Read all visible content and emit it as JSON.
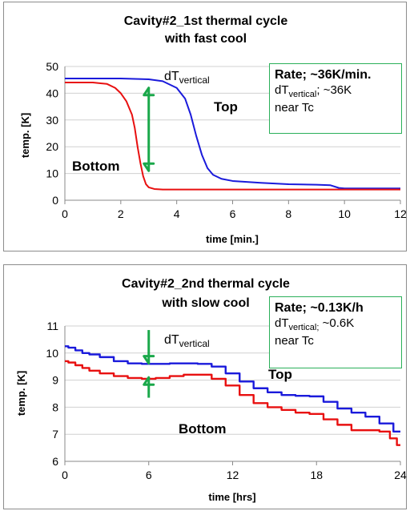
{
  "chart_data": [
    {
      "type": "line",
      "title": "Cavity#2_1st thermal cycle",
      "subtitle": "with fast cool",
      "xlabel": "time [min.]",
      "ylabel": "temp. [K]",
      "xlim": [
        0,
        12
      ],
      "ylim": [
        0,
        50
      ],
      "xticks": [
        0,
        2,
        4,
        6,
        8,
        10,
        12
      ],
      "yticks": [
        0,
        10,
        20,
        30,
        40,
        50
      ],
      "grid": "horizontal",
      "series": [
        {
          "name": "Top",
          "color": "#1a1adb",
          "x": [
            0,
            1,
            2,
            3,
            3.5,
            4,
            4.3,
            4.5,
            4.7,
            4.9,
            5.1,
            5.3,
            5.6,
            6,
            7,
            8,
            9,
            9.5,
            9.8,
            10,
            11,
            12
          ],
          "y": [
            45.5,
            45.5,
            45.5,
            45.2,
            44.5,
            42,
            38,
            32,
            24,
            17,
            12,
            9.5,
            8,
            7.2,
            6.5,
            6,
            5.8,
            5.6,
            4.6,
            4.4,
            4.4,
            4.4
          ]
        },
        {
          "name": "Bottom",
          "color": "#e81010",
          "x": [
            0,
            1,
            1.5,
            1.8,
            2,
            2.2,
            2.4,
            2.5,
            2.6,
            2.7,
            2.8,
            2.9,
            3.0,
            3.2,
            3.5,
            4,
            6,
            8,
            10,
            12
          ],
          "y": [
            44,
            44,
            43.5,
            42,
            40,
            37,
            32,
            27,
            20,
            14,
            9,
            6,
            4.8,
            4.2,
            4,
            4,
            4,
            4,
            4,
            4
          ]
        }
      ],
      "annotations": {
        "top_label": "Top",
        "bottom_label": "Bottom",
        "dt_main": "dT",
        "dt_sub": "vertical",
        "arrow": {
          "x": 3,
          "y_from": 11,
          "y_to": 42,
          "color": "#1aa84a"
        }
      },
      "info_box": {
        "rate": "Rate; ~36K/min.",
        "dt_main": "dT",
        "dt_sub": "vertical",
        "dt_value": "; ~36K",
        "note": "near Tc"
      }
    },
    {
      "type": "line",
      "title": "Cavity#2_2nd thermal cycle",
      "subtitle": "with slow cool",
      "xlabel": "time [hrs]",
      "ylabel": "temp. [K]",
      "xlim": [
        0,
        24
      ],
      "ylim": [
        6,
        11
      ],
      "xticks": [
        0,
        6,
        12,
        18,
        24
      ],
      "yticks": [
        6,
        7,
        8,
        9,
        10,
        11
      ],
      "grid": "horizontal",
      "series": [
        {
          "name": "Top",
          "color": "#1a1adb",
          "x": [
            0,
            0.5,
            1,
            1.5,
            2,
            3,
            4,
            5,
            6,
            7,
            8,
            9,
            10,
            11,
            12,
            13,
            14,
            15,
            16,
            17,
            18,
            19,
            20,
            21,
            22,
            23,
            24
          ],
          "y": [
            10.25,
            10.2,
            10.1,
            10.0,
            9.95,
            9.85,
            9.7,
            9.62,
            9.6,
            9.6,
            9.62,
            9.62,
            9.6,
            9.5,
            9.25,
            8.95,
            8.7,
            8.55,
            8.45,
            8.42,
            8.4,
            8.2,
            7.95,
            7.8,
            7.65,
            7.4,
            7.1
          ]
        },
        {
          "name": "Bottom",
          "color": "#e81010",
          "x": [
            0,
            0.5,
            1,
            1.5,
            2,
            3,
            4,
            5,
            6,
            7,
            8,
            9,
            10,
            11,
            12,
            13,
            14,
            15,
            16,
            17,
            18,
            19,
            20,
            21,
            22,
            23,
            23.5,
            24
          ],
          "y": [
            9.7,
            9.65,
            9.55,
            9.45,
            9.35,
            9.25,
            9.15,
            9.08,
            9.05,
            9.08,
            9.15,
            9.2,
            9.2,
            9.05,
            8.8,
            8.45,
            8.15,
            8.0,
            7.9,
            7.8,
            7.75,
            7.55,
            7.35,
            7.15,
            7.15,
            7.1,
            6.85,
            6.6
          ]
        }
      ],
      "annotations": {
        "top_label": "Top",
        "bottom_label": "Bottom",
        "dt_main": "dT",
        "dt_sub": "vertical",
        "arrow_down": {
          "x": 6,
          "y_from": 10.85,
          "y_to": 9.62,
          "color": "#1aa84a"
        },
        "arrow_up": {
          "x": 6,
          "y_from": 8.35,
          "y_to": 9.1,
          "color": "#1aa84a"
        }
      },
      "info_box": {
        "rate": "Rate; ~0.13K/h",
        "dt_main": "dT",
        "dt_sub": "vertical;",
        "dt_value": "  ~0.6K",
        "note": "near Tc"
      }
    }
  ]
}
